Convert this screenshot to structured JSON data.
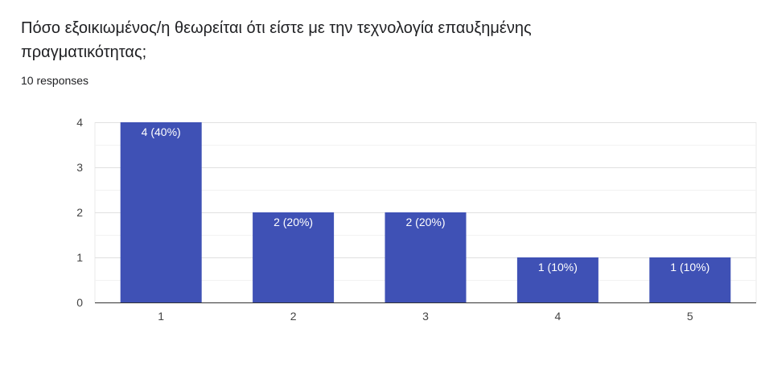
{
  "question": {
    "title": "Πόσο εξοικιωμένος/η θεωρείται ότι είστε με την τεχνολογία επαυξημένης πραγματικότητας;",
    "responses": "10 responses"
  },
  "colors": {
    "bar": "#3f51b5",
    "grid": "#e8e8e8",
    "axis": "#333333",
    "tick_text": "#444444",
    "bar_text": "#ffffff"
  },
  "chart_data": {
    "type": "bar",
    "categories": [
      "1",
      "2",
      "3",
      "4",
      "5"
    ],
    "values": [
      4,
      2,
      2,
      1,
      1
    ],
    "data_labels": [
      "4 (40%)",
      "2 (20%)",
      "2 (20%)",
      "1 (10%)",
      "1 (10%)"
    ],
    "yticks": [
      0,
      1,
      2,
      3,
      4
    ],
    "ylim": [
      0,
      4
    ],
    "grid": true,
    "legend": "none",
    "title": "",
    "xlabel": "",
    "ylabel": ""
  }
}
